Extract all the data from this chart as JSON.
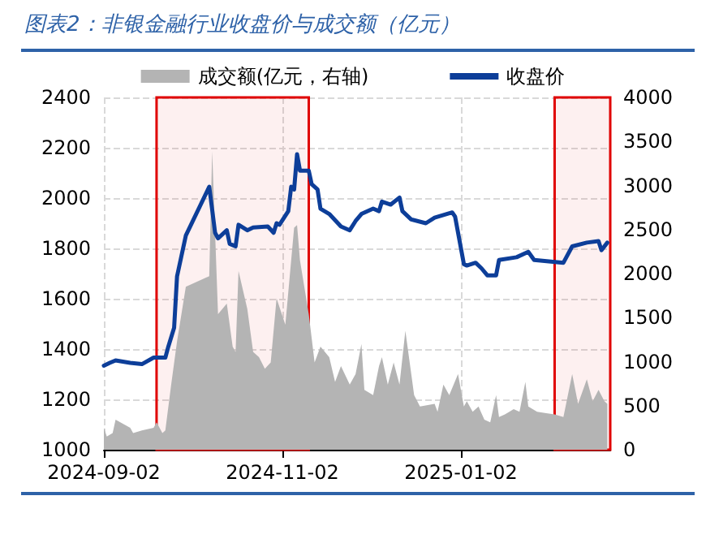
{
  "chart_data": {
    "type": "line",
    "title": "图表2：非银金融行业收盘价与成交额（亿元）",
    "xlim": [
      "2024-09-02",
      "2025-02-22"
    ],
    "xticks": [
      "2024-09-02",
      "2024-11-02",
      "2025-01-02"
    ],
    "ylim": [
      1000,
      2400
    ],
    "yticks": [
      1000,
      1200,
      1400,
      1600,
      1800,
      2000,
      2200,
      2400
    ],
    "y2lim": [
      0,
      4000
    ],
    "y2ticks": [
      0,
      500,
      1000,
      1500,
      2000,
      2500,
      3000,
      3500,
      4000
    ],
    "grid": true,
    "legend": "top",
    "bands": [
      {
        "axis": "x",
        "from": "2024-09-20",
        "to": "2024-11-11",
        "color": "#e00000"
      },
      {
        "axis": "x",
        "from": "2025-02-03",
        "to": "2025-02-22",
        "color": "#e00000"
      }
    ],
    "series": [
      {
        "name": "成交额(亿元，右轴)",
        "type": "area",
        "axis": "y2",
        "color": "#b4b4b4",
        "x": [
          "2024-09-02",
          "2024-09-03",
          "2024-09-05",
          "2024-09-06",
          "2024-09-11",
          "2024-09-12",
          "2024-09-15",
          "2024-09-19",
          "2024-09-20",
          "2024-09-22",
          "2024-09-23",
          "2024-09-25",
          "2024-09-27",
          "2024-09-30",
          "2024-10-08",
          "2024-10-09",
          "2024-10-11",
          "2024-10-14",
          "2024-10-16",
          "2024-10-17",
          "2024-10-18",
          "2024-10-21",
          "2024-10-23",
          "2024-10-25",
          "2024-10-27",
          "2024-10-29",
          "2024-10-31",
          "2024-11-03",
          "2024-11-06",
          "2024-11-07",
          "2024-11-08",
          "2024-11-11",
          "2024-11-13",
          "2024-11-15",
          "2024-11-18",
          "2024-11-20",
          "2024-11-22",
          "2024-11-25",
          "2024-11-27",
          "2024-11-29",
          "2024-11-30",
          "2024-12-03",
          "2024-12-05",
          "2024-12-06",
          "2024-12-08",
          "2024-12-10",
          "2024-12-12",
          "2024-12-14",
          "2024-12-17",
          "2024-12-19",
          "2024-12-24",
          "2024-12-25",
          "2024-12-27",
          "2024-12-29",
          "2025-01-01",
          "2025-01-03",
          "2025-01-04",
          "2025-01-06",
          "2025-01-08",
          "2025-01-10",
          "2025-01-12",
          "2025-01-14",
          "2025-01-15",
          "2025-01-17",
          "2025-01-20",
          "2025-01-22",
          "2025-01-24",
          "2025-01-25",
          "2025-01-28",
          "2025-02-03",
          "2025-02-06",
          "2025-02-09",
          "2025-02-11",
          "2025-02-14",
          "2025-02-16",
          "2025-02-18",
          "2025-02-20",
          "2025-02-21"
        ],
        "values": [
          250,
          150,
          190,
          340,
          250,
          190,
          220,
          250,
          310,
          190,
          220,
          740,
          1230,
          1850,
          1970,
          3390,
          1540,
          1660,
          1170,
          1110,
          2030,
          1600,
          1110,
          1050,
          920,
          990,
          1720,
          1420,
          2520,
          2550,
          2150,
          1540,
          990,
          1170,
          1050,
          770,
          950,
          740,
          860,
          1200,
          680,
          620,
          950,
          1050,
          740,
          990,
          740,
          1350,
          620,
          490,
          520,
          430,
          740,
          620,
          860,
          490,
          550,
          430,
          490,
          340,
          310,
          620,
          370,
          400,
          460,
          430,
          770,
          490,
          430,
          400,
          370,
          860,
          520,
          800,
          550,
          680,
          550,
          520
        ]
      },
      {
        "name": "收盘价",
        "color": "#0d3e99",
        "x": [
          "2024-09-02",
          "2024-09-04",
          "2024-09-06",
          "2024-09-11",
          "2024-09-15",
          "2024-09-19",
          "2024-09-23",
          "2024-09-24",
          "2024-09-26",
          "2024-09-27",
          "2024-09-30",
          "2024-10-08",
          "2024-10-10",
          "2024-10-11",
          "2024-10-14",
          "2024-10-15",
          "2024-10-17",
          "2024-10-18",
          "2024-10-21",
          "2024-10-23",
          "2024-10-28",
          "2024-10-30",
          "2024-10-31",
          "2024-11-01",
          "2024-11-04",
          "2024-11-05",
          "2024-11-06",
          "2024-11-07",
          "2024-11-08",
          "2024-11-11",
          "2024-11-12",
          "2024-11-14",
          "2024-11-15",
          "2024-11-18",
          "2024-11-22",
          "2024-11-25",
          "2024-11-27",
          "2024-11-29",
          "2024-12-03",
          "2024-12-05",
          "2024-12-06",
          "2024-12-09",
          "2024-12-12",
          "2024-12-13",
          "2024-12-16",
          "2024-12-21",
          "2024-12-24",
          "2024-12-30",
          "2024-12-31",
          "2025-01-03",
          "2025-01-04",
          "2025-01-07",
          "2025-01-09",
          "2025-01-11",
          "2025-01-14",
          "2025-01-15",
          "2025-01-21",
          "2025-01-25",
          "2025-01-27",
          "2025-02-06",
          "2025-02-09",
          "2025-02-14",
          "2025-02-18",
          "2025-02-19",
          "2025-02-21"
        ],
        "values": [
          1334,
          1345,
          1355,
          1345,
          1340,
          1366,
          1366,
          1409,
          1485,
          1689,
          1851,
          2045,
          1862,
          1840,
          1872,
          1818,
          1808,
          1894,
          1872,
          1883,
          1887,
          1862,
          1900,
          1894,
          1948,
          2045,
          2034,
          2174,
          2109,
          2109,
          2055,
          2034,
          1958,
          1937,
          1887,
          1872,
          1909,
          1937,
          1958,
          1948,
          1986,
          1974,
          2002,
          1948,
          1915,
          1900,
          1922,
          1943,
          1926,
          1737,
          1732,
          1743,
          1721,
          1693,
          1693,
          1754,
          1765,
          1786,
          1754,
          1743,
          1808,
          1823,
          1829,
          1793,
          1823
        ]
      }
    ]
  }
}
